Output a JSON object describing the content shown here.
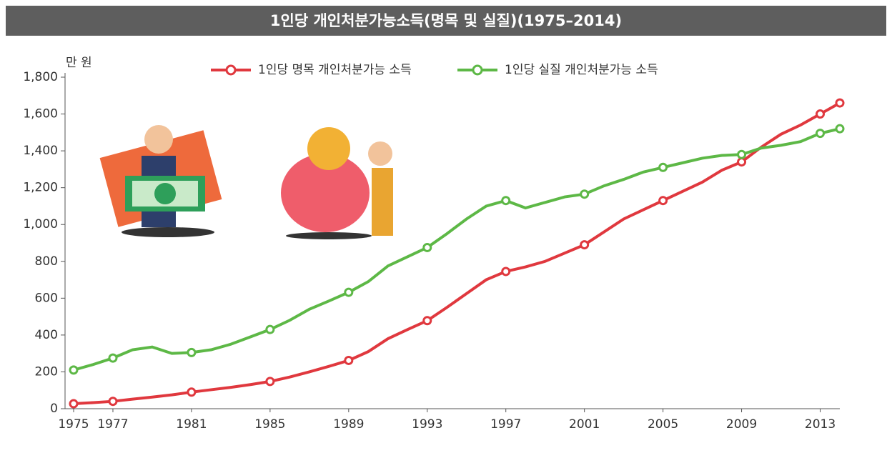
{
  "chart_data": {
    "type": "line",
    "title": "1인당 개인처분가능소득(명목 및 실질)(1975–2014)",
    "y_unit": "만 원",
    "x": [
      1975,
      1976,
      1977,
      1978,
      1979,
      1980,
      1981,
      1982,
      1983,
      1984,
      1985,
      1986,
      1987,
      1988,
      1989,
      1990,
      1991,
      1992,
      1993,
      1994,
      1995,
      1996,
      1997,
      1998,
      1999,
      2000,
      2001,
      2002,
      2003,
      2004,
      2005,
      2006,
      2007,
      2008,
      2009,
      2010,
      2011,
      2012,
      2013,
      2014
    ],
    "series": [
      {
        "name": "1인당 명목 개인처분가능 소득",
        "color": "#e0383e",
        "values": [
          27,
          33,
          40,
          52,
          63,
          75,
          90,
          103,
          116,
          131,
          148,
          172,
          200,
          230,
          262,
          310,
          380,
          430,
          478,
          550,
          625,
          700,
          745,
          770,
          800,
          845,
          890,
          960,
          1030,
          1080,
          1130,
          1180,
          1230,
          1295,
          1340,
          1420,
          1490,
          1540,
          1600,
          1660
        ]
      },
      {
        "name": "1인당 실질 개인처분가능 소득",
        "color": "#5db846",
        "values": [
          210,
          240,
          275,
          320,
          335,
          300,
          305,
          320,
          350,
          390,
          430,
          480,
          540,
          585,
          632,
          690,
          775,
          825,
          875,
          950,
          1030,
          1100,
          1130,
          1090,
          1120,
          1150,
          1165,
          1210,
          1245,
          1285,
          1310,
          1335,
          1360,
          1375,
          1380,
          1415,
          1430,
          1450,
          1495,
          1520
        ]
      }
    ],
    "xlim": [
      1975,
      2014
    ],
    "xticks": [
      1975,
      1977,
      1981,
      1985,
      1989,
      1993,
      1997,
      2001,
      2005,
      2009,
      2013
    ],
    "ylim": [
      0,
      1800
    ],
    "yticks": [
      0,
      200,
      400,
      600,
      800,
      1000,
      1200,
      1400,
      1600,
      1800
    ],
    "ytick_labels": [
      "0",
      "200",
      "400",
      "600",
      "800",
      "1,000",
      "1,200",
      "1,400",
      "1,600",
      "1,800"
    ]
  }
}
